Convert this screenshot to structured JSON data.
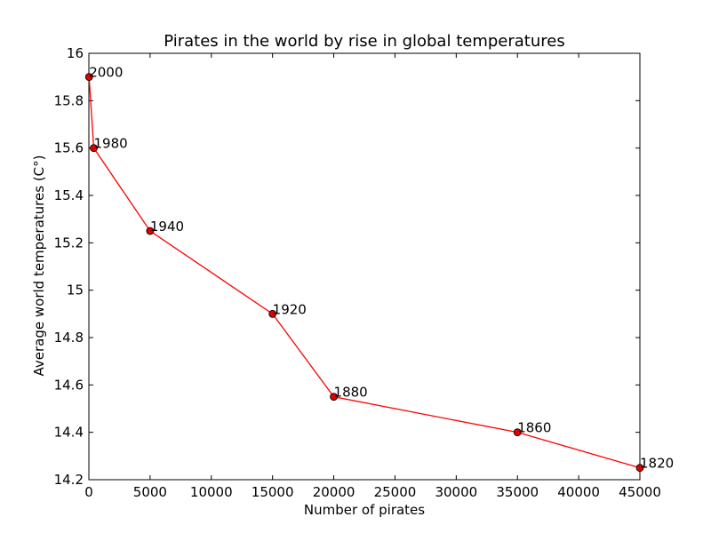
{
  "chart_data": {
    "type": "line",
    "title": "Pirates in the world by rise in global temperatures",
    "xlabel": "Number of pirates",
    "ylabel": "Average world temperatures (C°)",
    "xlim": [
      0,
      45000
    ],
    "ylim": [
      14.2,
      16.0
    ],
    "xticks": [
      0,
      5000,
      10000,
      15000,
      20000,
      25000,
      30000,
      35000,
      40000,
      45000
    ],
    "yticks": [
      14.2,
      14.4,
      14.6,
      14.8,
      15.0,
      15.2,
      15.4,
      15.6,
      15.8,
      16.0
    ],
    "grid": false,
    "series": [
      {
        "color": "#ff0000",
        "marker_color": "#dd0000",
        "points": [
          {
            "x": 45000,
            "y": 14.25,
            "label": "1820"
          },
          {
            "x": 35000,
            "y": 14.4,
            "label": "1860"
          },
          {
            "x": 20000,
            "y": 14.55,
            "label": "1880"
          },
          {
            "x": 15000,
            "y": 14.9,
            "label": "1920"
          },
          {
            "x": 5000,
            "y": 15.25,
            "label": "1940"
          },
          {
            "x": 400,
            "y": 15.6,
            "label": "1980"
          },
          {
            "x": 17,
            "y": 15.9,
            "label": "2000"
          }
        ]
      }
    ]
  }
}
